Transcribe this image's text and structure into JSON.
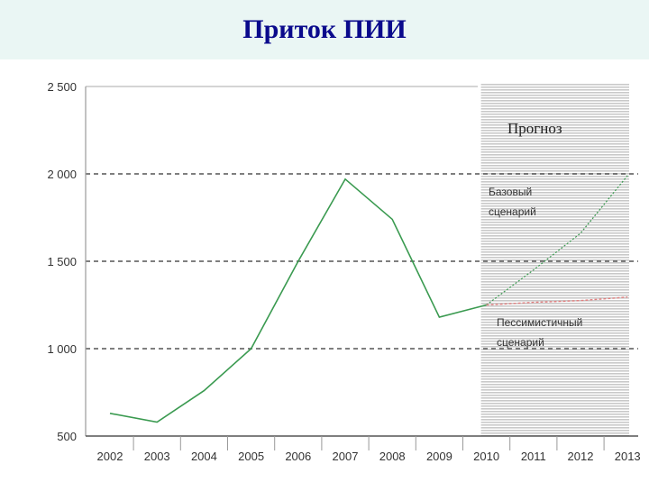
{
  "title": "Приток ПИИ",
  "colors": {
    "title": "#0a0a8c",
    "title_bg": "#eaf6f4",
    "line": "#3a9a50",
    "pessimistic": "#e08080",
    "forecast_stripe": "#c9c9c9",
    "grid": "#555555",
    "text": "#333333"
  },
  "chart_data": {
    "type": "line",
    "categories": [
      "2002",
      "2003",
      "2004",
      "2005",
      "2006",
      "2007",
      "2008",
      "2009",
      "2010",
      "2011",
      "2012",
      "2013"
    ],
    "ylim": [
      500,
      2500
    ],
    "yticks": [
      500,
      1000,
      1500,
      2000,
      2500
    ],
    "ytick_labels": [
      "500",
      "1 000",
      "1 500",
      "2 000",
      "2 500"
    ],
    "grid": "dashed horizontal",
    "forecast_region": {
      "from": "2010",
      "to": "2013",
      "label": "Прогноз"
    },
    "series": [
      {
        "values": [
          630,
          580,
          760,
          1000,
          1500,
          1970,
          1740,
          1180,
          1250,
          null,
          null,
          null
        ]
      },
      {
        "name": "Базовый сценарий",
        "style": "dotted",
        "values": [
          null,
          null,
          null,
          null,
          null,
          null,
          null,
          null,
          1250,
          1450,
          1660,
          1990
        ]
      },
      {
        "name": "Пессимистичный сценарий",
        "style": "dotted",
        "values": [
          null,
          null,
          null,
          null,
          null,
          null,
          null,
          null,
          1250,
          1265,
          1275,
          1295
        ]
      }
    ]
  }
}
